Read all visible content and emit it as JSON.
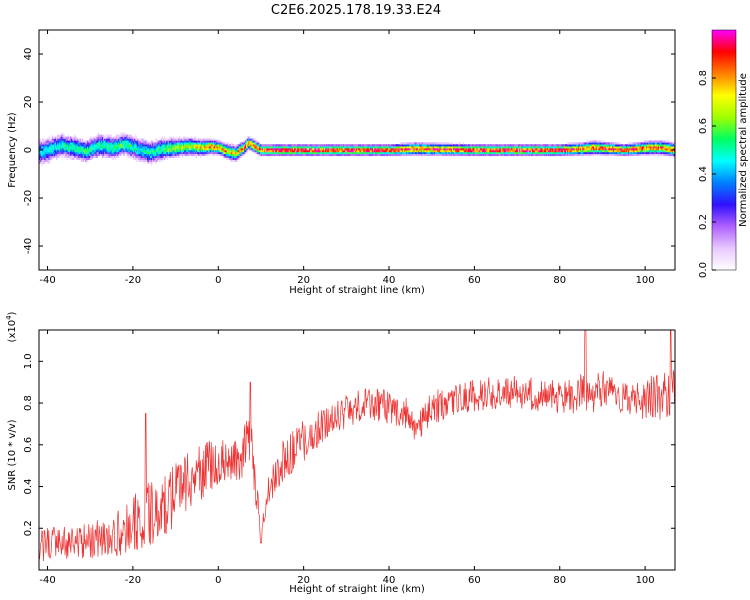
{
  "title": "C2E6.2025.178.19.33.E24",
  "chart_data": [
    {
      "type": "heatmap",
      "xlabel": "Height of straight line (km)",
      "ylabel": "Frequency (Hz)",
      "xlim": [
        -42,
        107
      ],
      "ylim": [
        -50,
        50
      ],
      "x_ticks": [
        -40,
        -20,
        0,
        20,
        40,
        60,
        80,
        100
      ],
      "y_ticks": [
        -40,
        -20,
        0,
        20,
        40
      ],
      "colorbar": {
        "label": "Normalized spectral amplitude",
        "range": [
          0,
          1
        ],
        "ticks": [
          "0.0",
          "0.2",
          "0.4",
          "0.6",
          "0.8"
        ],
        "tick_values": [
          0,
          0.2,
          0.4,
          0.6,
          0.8
        ],
        "colors": [
          "#ffffff",
          "#e8c8ff",
          "#b060ff",
          "#3010ff",
          "#0080ff",
          "#00ffff",
          "#00ff60",
          "#a0ff00",
          "#ffff00",
          "#ff8000",
          "#ff0000",
          "#ff00ff"
        ]
      },
      "ridge": {
        "x": [
          -42,
          -40,
          -37,
          -34,
          -31,
          -28,
          -25,
          -22,
          -19,
          -16,
          -13,
          -10,
          -7,
          -4,
          -2,
          0,
          2,
          3,
          4,
          5,
          6,
          7,
          8,
          9,
          10,
          20,
          40,
          46,
          60,
          80,
          85,
          88,
          92,
          95,
          98,
          101,
          104,
          107
        ],
        "frequency": [
          -1,
          0,
          2,
          1,
          -0.5,
          2,
          1,
          2.5,
          0.5,
          -1,
          0.5,
          1,
          1.5,
          1,
          1.5,
          1,
          -0.5,
          -1,
          -1.5,
          0,
          1,
          3,
          2,
          1,
          0,
          0,
          0,
          0.5,
          0,
          0,
          0.5,
          1,
          0.5,
          0,
          0.5,
          1,
          1,
          0
        ],
        "amplitude": [
          0.45,
          0.5,
          0.55,
          0.55,
          0.6,
          0.55,
          0.6,
          0.6,
          0.5,
          0.55,
          0.6,
          0.7,
          0.75,
          0.8,
          0.85,
          0.9,
          0.85,
          0.8,
          0.85,
          0.9,
          0.95,
          0.95,
          0.95,
          0.95,
          1,
          1,
          1,
          0.95,
          1,
          1,
          0.95,
          0.9,
          0.95,
          1,
          0.95,
          0.9,
          0.9,
          0.9
        ]
      }
    },
    {
      "type": "line",
      "xlabel": "Height of straight line (km)",
      "ylabel": "SNR (10 * v/v)",
      "y_multiplier_label": "(x10",
      "y_multiplier_exp": "4",
      "xlim": [
        -42,
        107
      ],
      "ylim": [
        0,
        1.15
      ],
      "x_ticks": [
        -40,
        -20,
        0,
        20,
        40,
        60,
        80,
        100
      ],
      "y_ticks": [
        0.2,
        0.4,
        0.6,
        0.8,
        1.0
      ],
      "y_tick_labels": [
        "0.2",
        "0.4",
        "0.6",
        "0.8",
        "1.0"
      ],
      "color": "#ee3333",
      "envelope": {
        "x": [
          -42,
          -35,
          -25,
          -20,
          -15,
          -10,
          -5,
          0,
          3,
          5,
          7,
          8,
          10,
          12,
          15,
          18,
          20,
          25,
          30,
          35,
          40,
          45,
          46,
          50,
          55,
          60,
          65,
          70,
          75,
          80,
          85,
          90,
          95,
          100,
          105,
          107
        ],
        "mean": [
          0.12,
          0.13,
          0.16,
          0.22,
          0.28,
          0.36,
          0.45,
          0.52,
          0.55,
          0.5,
          0.65,
          0.55,
          0.18,
          0.4,
          0.52,
          0.58,
          0.62,
          0.7,
          0.76,
          0.8,
          0.78,
          0.74,
          0.66,
          0.78,
          0.8,
          0.84,
          0.85,
          0.85,
          0.84,
          0.83,
          0.84,
          0.86,
          0.82,
          0.82,
          0.84,
          0.84
        ],
        "noise": [
          0.08,
          0.08,
          0.1,
          0.14,
          0.16,
          0.16,
          0.14,
          0.12,
          0.12,
          0.12,
          0.1,
          0.12,
          0.06,
          0.1,
          0.1,
          0.1,
          0.1,
          0.08,
          0.08,
          0.08,
          0.08,
          0.08,
          0.06,
          0.08,
          0.08,
          0.08,
          0.08,
          0.08,
          0.08,
          0.08,
          0.1,
          0.1,
          0.08,
          0.1,
          0.12,
          0.12
        ]
      },
      "spikes": [
        {
          "x": -17,
          "y": 0.75
        },
        {
          "x": 7.5,
          "y": 0.9
        },
        {
          "x": 10,
          "y": 0.13
        },
        {
          "x": 86,
          "y": 1.16
        },
        {
          "x": 106,
          "y": 1.16
        }
      ]
    }
  ]
}
